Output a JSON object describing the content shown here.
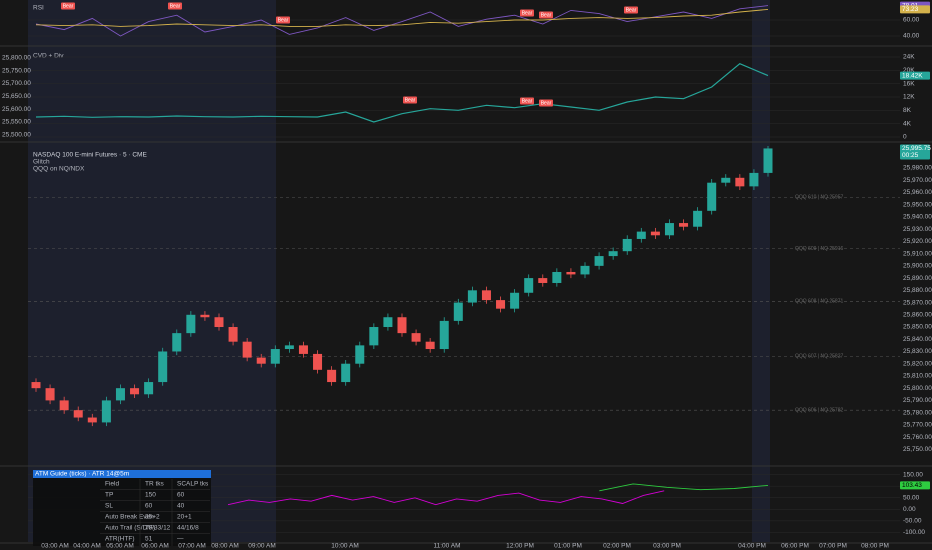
{
  "chart_data": [
    {
      "type": "line",
      "title": "RSI",
      "ylim": [
        30,
        80
      ],
      "yticks": [
        {
          "value": 60,
          "label": "60.00"
        },
        {
          "value": 40,
          "label": "40.00"
        }
      ],
      "series": [
        {
          "color": "#7e57c2",
          "values": [
            55,
            48,
            62,
            40,
            58,
            66,
            45,
            52,
            60,
            42,
            50,
            63,
            47,
            58,
            70,
            52,
            61,
            66,
            55,
            72,
            68,
            58,
            64,
            70,
            62,
            74,
            78.01
          ],
          "last_label": "78.01"
        },
        {
          "color": "#d4b24c",
          "values": [
            54,
            53,
            54,
            52,
            53,
            55,
            54,
            53,
            54,
            52,
            52,
            54,
            53,
            54,
            57,
            56,
            58,
            60,
            60,
            62,
            63,
            62,
            63,
            65,
            66,
            70,
            73.23
          ],
          "last_label": "73.23"
        }
      ],
      "signals": [
        "Bear",
        "Bear",
        "Bear",
        "Bear",
        "Bear",
        "Bear"
      ]
    },
    {
      "type": "line",
      "title": "CVD + Div",
      "color": "#26a69a",
      "ylim": [
        -900,
        26100
      ],
      "yticks": [
        {
          "value": 24000,
          "label": "24K"
        },
        {
          "value": 20000,
          "label": "20K"
        },
        {
          "value": 16000,
          "label": "16K"
        },
        {
          "value": 12000,
          "label": "12K"
        },
        {
          "value": 8000,
          "label": "8K"
        },
        {
          "value": 4000,
          "label": "4K"
        },
        0
      ],
      "y2lim": [
        25480,
        25830
      ],
      "y2ticks": [
        {
          "value": 25800,
          "label": "25,800.00"
        },
        {
          "value": 25750,
          "label": "25,750.00"
        },
        {
          "value": 25700,
          "label": "25,700.00"
        },
        {
          "value": 25650,
          "label": "25,650.00"
        },
        {
          "value": 25600,
          "label": "25,600.00"
        },
        {
          "value": 25550,
          "label": "25,550.00"
        },
        {
          "value": 25500,
          "label": "25,500.00"
        }
      ],
      "values": [
        6000,
        6200,
        5900,
        6100,
        6000,
        6300,
        6100,
        6000,
        6200,
        6100,
        6000,
        7500,
        4500,
        7000,
        8500,
        8000,
        9500,
        8800,
        10000,
        9000,
        8000,
        10500,
        12000,
        11500,
        15000,
        22000,
        18420
      ],
      "last_label": "18.42K",
      "signals": [
        "Bear",
        "Bear",
        "Bear"
      ]
    },
    {
      "type": "candlestick",
      "title": "NASDAQ 100 E-mini Futures · 5 · CME",
      "subtitle": [
        "Glitch",
        "QQQ on NQ/NDX"
      ],
      "up_color": "#26a69a",
      "down_color": "#ef5350",
      "ylim": [
        25738,
        25998
      ],
      "yticks": [
        {
          "value": 25980,
          "label": "25,980.00"
        },
        {
          "value": 25970,
          "label": "25,970.00"
        },
        {
          "value": 25960,
          "label": "25,960.00"
        },
        {
          "value": 25950,
          "label": "25,950.00"
        },
        {
          "value": 25940,
          "label": "25,940.00"
        },
        {
          "value": 25930,
          "label": "25,930.00"
        },
        {
          "value": 25920,
          "label": "25,920.00"
        },
        {
          "value": 25910,
          "label": "25,910.00"
        },
        {
          "value": 25900,
          "label": "25,900.00"
        },
        {
          "value": 25890,
          "label": "25,890.00"
        },
        {
          "value": 25880,
          "label": "25,880.00"
        },
        {
          "value": 25870,
          "label": "25,870.00"
        },
        {
          "value": 25860,
          "label": "25,860.00"
        },
        {
          "value": 25850,
          "label": "25,850.00"
        },
        {
          "value": 25840,
          "label": "25,840.00"
        },
        {
          "value": 25830,
          "label": "25,830.00"
        },
        {
          "value": 25820,
          "label": "25,820.00"
        },
        {
          "value": 25810,
          "label": "25,810.00"
        },
        {
          "value": 25800,
          "label": "25,800.00"
        },
        {
          "value": 25790,
          "label": "25,790.00"
        },
        {
          "value": 25780,
          "label": "25,780.00"
        },
        {
          "value": 25770,
          "label": "25,770.00"
        },
        {
          "value": 25760,
          "label": "25,760.00"
        },
        {
          "value": 25750,
          "label": "25,750.00"
        }
      ],
      "levels": [
        {
          "value": 25956,
          "label": "QQQ 610 | NQ 25957"
        },
        {
          "value": 25914,
          "label": "QQQ 609 | NQ 25916"
        },
        {
          "value": 25871,
          "label": "QQQ 608 | NQ 25871"
        },
        {
          "value": 25826,
          "label": "QQQ 607 | NQ 25827"
        },
        {
          "value": 25782,
          "label": "QQQ 606 | NQ 25782"
        }
      ],
      "last_label": "25,995.75",
      "countdown": "00:25",
      "candles": [
        [
          25805,
          25808,
          25797,
          25800
        ],
        [
          25800,
          25803,
          25787,
          25790
        ],
        [
          25790,
          25793,
          25779,
          25782
        ],
        [
          25782,
          25785,
          25773,
          25776
        ],
        [
          25776,
          25779,
          25769,
          25772
        ],
        [
          25772,
          25793,
          25769,
          25790
        ],
        [
          25790,
          25803,
          25787,
          25800
        ],
        [
          25800,
          25803,
          25792,
          25795
        ],
        [
          25795,
          25808,
          25792,
          25805
        ],
        [
          25805,
          25833,
          25802,
          25830
        ],
        [
          25830,
          25848,
          25827,
          25845
        ],
        [
          25845,
          25863,
          25842,
          25860
        ],
        [
          25860,
          25863,
          25855,
          25858
        ],
        [
          25858,
          25861,
          25847,
          25850
        ],
        [
          25850,
          25853,
          25835,
          25838
        ],
        [
          25838,
          25841,
          25822,
          25825
        ],
        [
          25825,
          25828,
          25817,
          25820
        ],
        [
          25820,
          25835,
          25817,
          25832
        ],
        [
          25832,
          25838,
          25829,
          25835
        ],
        [
          25835,
          25838,
          25825,
          25828
        ],
        [
          25828,
          25831,
          25812,
          25815
        ],
        [
          25815,
          25818,
          25802,
          25805
        ],
        [
          25805,
          25823,
          25802,
          25820
        ],
        [
          25820,
          25838,
          25817,
          25835
        ],
        [
          25835,
          25853,
          25832,
          25850
        ],
        [
          25850,
          25861,
          25847,
          25858
        ],
        [
          25858,
          25861,
          25842,
          25845
        ],
        [
          25845,
          25848,
          25835,
          25838
        ],
        [
          25838,
          25841,
          25829,
          25832
        ],
        [
          25832,
          25858,
          25829,
          25855
        ],
        [
          25855,
          25873,
          25852,
          25870
        ],
        [
          25870,
          25883,
          25867,
          25880
        ],
        [
          25880,
          25883,
          25869,
          25872
        ],
        [
          25872,
          25875,
          25862,
          25865
        ],
        [
          25865,
          25881,
          25862,
          25878
        ],
        [
          25878,
          25893,
          25875,
          25890
        ],
        [
          25890,
          25893,
          25883,
          25886
        ],
        [
          25886,
          25898,
          25883,
          25895
        ],
        [
          25895,
          25898,
          25890,
          25893
        ],
        [
          25893,
          25903,
          25890,
          25900
        ],
        [
          25900,
          25911,
          25897,
          25908
        ],
        [
          25908,
          25915,
          25905,
          25912
        ],
        [
          25912,
          25925,
          25909,
          25922
        ],
        [
          25922,
          25931,
          25919,
          25928
        ],
        [
          25928,
          25931,
          25922,
          25925
        ],
        [
          25925,
          25938,
          25922,
          25935
        ],
        [
          25935,
          25938,
          25929,
          25932
        ],
        [
          25932,
          25948,
          25929,
          25945
        ],
        [
          25945,
          25971,
          25942,
          25968
        ],
        [
          25968,
          25975,
          25965,
          25972
        ],
        [
          25972,
          25975,
          25962,
          25965
        ],
        [
          25965,
          25979,
          25962,
          25976
        ],
        [
          25976,
          25998,
          25973,
          25996
        ]
      ]
    },
    {
      "type": "line",
      "ylim": [
        -137,
        170
      ],
      "yticks": [
        {
          "value": 150,
          "label": "150.00"
        },
        {
          "value": 100,
          "label": "100.00"
        },
        {
          "value": 50,
          "label": "50.00"
        },
        {
          "value": 0,
          "label": "0.00"
        },
        {
          "value": -50,
          "label": "-50.00"
        },
        {
          "value": -100,
          "label": "-100.00"
        }
      ],
      "series": [
        {
          "color": "#d500d5",
          "values": [
            20,
            40,
            30,
            45,
            35,
            60,
            40,
            55,
            30,
            50,
            20,
            45,
            35,
            60,
            70,
            40,
            30,
            55,
            45,
            25,
            60,
            80,
            null,
            null,
            null,
            null,
            null
          ]
        },
        {
          "color": "#2ecc40",
          "values": [
            null,
            null,
            null,
            null,
            null,
            null,
            null,
            null,
            null,
            null,
            null,
            80,
            110,
            95,
            85,
            90,
            103.43
          ]
        }
      ],
      "last_label": "103.43"
    }
  ],
  "atm_table": {
    "title": "ATM Guide (ticks) · ATR 14@5m",
    "columns": [
      "Field",
      "TR tks",
      "SCALP tks"
    ],
    "rows": [
      [
        "TP",
        150,
        60
      ],
      [
        "SL",
        60,
        40
      ],
      [
        "Auto Break Even",
        "35+2",
        "20+1"
      ],
      [
        "Auto Trail (S/D/F)",
        "78/33/12",
        "44/16/8"
      ],
      [
        "ATR(HTF)",
        51,
        "—"
      ]
    ]
  },
  "time_axis": [
    "03:00 AM",
    "04:00 AM",
    "05:00 AM",
    "06:00 AM",
    "07:00 AM",
    "08:00 AM",
    "09:00 AM",
    "10:00 AM",
    "11:00 AM",
    "12:00 PM",
    "01:00 PM",
    "02:00 PM",
    "03:00 PM",
    "04:00 PM",
    "06:00 PM",
    "07:00 PM",
    "08:00 PM"
  ]
}
